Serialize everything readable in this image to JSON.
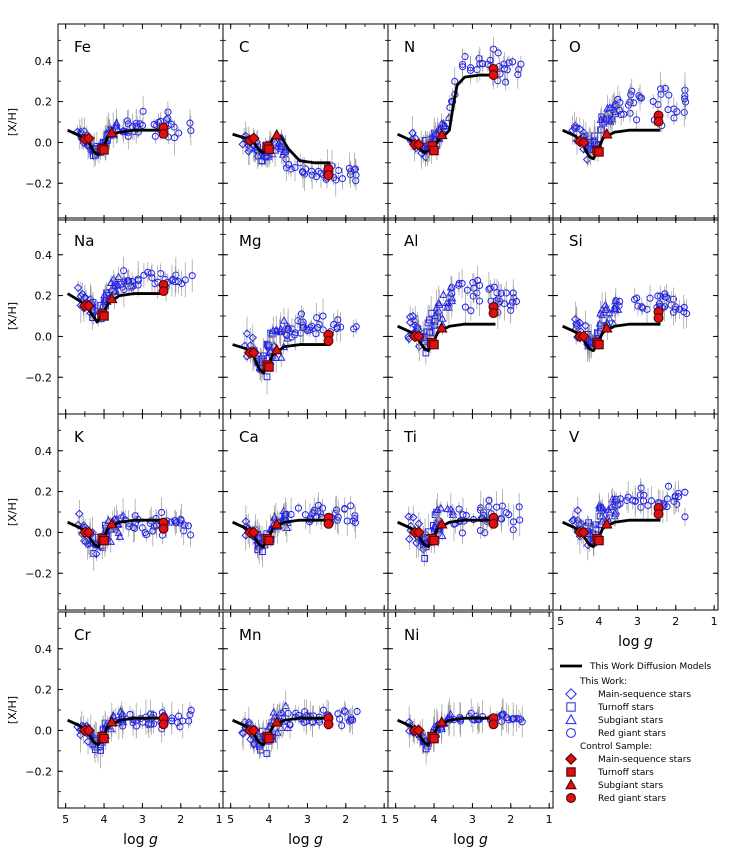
{
  "chart_data": {
    "type": "scatter",
    "title": "",
    "xlabel": "log g",
    "xlabel_main": "log ",
    "xlabel_italic": "g",
    "ylabel": "[X/H]",
    "xlim": [
      5.2,
      0.9
    ],
    "ylim": [
      -0.38,
      0.58
    ],
    "xticks": [
      5,
      4,
      3,
      2,
      1
    ],
    "yticks": [
      -0.2,
      0.0,
      0.2,
      0.4
    ],
    "ytick_labels": [
      "−0.2",
      "0.0",
      "0.2",
      "0.4"
    ],
    "panels": [
      {
        "element": "Fe",
        "model": [
          [
            4.95,
            0.06
          ],
          [
            4.6,
            0.03
          ],
          [
            4.4,
            0.0
          ],
          [
            4.25,
            -0.05
          ],
          [
            4.15,
            -0.06
          ],
          [
            4.05,
            -0.04
          ],
          [
            3.9,
            0.03
          ],
          [
            3.6,
            0.05
          ],
          [
            3.2,
            0.06
          ],
          [
            2.7,
            0.06
          ],
          [
            2.4,
            0.06
          ]
        ]
      },
      {
        "element": "C",
        "model": [
          [
            4.95,
            0.04
          ],
          [
            4.6,
            0.02
          ],
          [
            4.4,
            0.0
          ],
          [
            4.25,
            -0.04
          ],
          [
            4.15,
            -0.05
          ],
          [
            4.05,
            -0.03
          ],
          [
            3.9,
            0.02
          ],
          [
            3.7,
            0.03
          ],
          [
            3.5,
            -0.03
          ],
          [
            3.2,
            -0.09
          ],
          [
            2.8,
            -0.1
          ],
          [
            2.4,
            -0.1
          ]
        ]
      },
      {
        "element": "N",
        "model": [
          [
            4.95,
            0.04
          ],
          [
            4.6,
            0.01
          ],
          [
            4.4,
            -0.03
          ],
          [
            4.25,
            -0.05
          ],
          [
            4.15,
            -0.04
          ],
          [
            4.0,
            -0.02
          ],
          [
            3.85,
            0.02
          ],
          [
            3.7,
            0.04
          ],
          [
            3.6,
            0.06
          ],
          [
            3.5,
            0.18
          ],
          [
            3.4,
            0.28
          ],
          [
            3.2,
            0.32
          ],
          [
            2.8,
            0.33
          ],
          [
            2.4,
            0.33
          ]
        ]
      },
      {
        "element": "O",
        "model": [
          [
            4.95,
            0.06
          ],
          [
            4.6,
            0.03
          ],
          [
            4.4,
            -0.02
          ],
          [
            4.25,
            -0.07
          ],
          [
            4.15,
            -0.08
          ],
          [
            4.05,
            -0.05
          ],
          [
            3.9,
            0.02
          ],
          [
            3.6,
            0.05
          ],
          [
            3.2,
            0.06
          ],
          [
            2.7,
            0.06
          ],
          [
            2.4,
            0.06
          ]
        ]
      },
      {
        "element": "Na",
        "model": [
          [
            4.95,
            0.21
          ],
          [
            4.6,
            0.17
          ],
          [
            4.4,
            0.13
          ],
          [
            4.25,
            0.09
          ],
          [
            4.18,
            0.07
          ],
          [
            4.05,
            0.1
          ],
          [
            3.9,
            0.16
          ],
          [
            3.6,
            0.2
          ],
          [
            3.2,
            0.21
          ],
          [
            2.7,
            0.21
          ],
          [
            2.4,
            0.21
          ]
        ]
      },
      {
        "element": "Mg",
        "model": [
          [
            4.95,
            -0.04
          ],
          [
            4.6,
            -0.06
          ],
          [
            4.4,
            -0.1
          ],
          [
            4.25,
            -0.16
          ],
          [
            4.15,
            -0.18
          ],
          [
            4.05,
            -0.15
          ],
          [
            3.9,
            -0.09
          ],
          [
            3.6,
            -0.05
          ],
          [
            3.2,
            -0.04
          ],
          [
            2.7,
            -0.04
          ],
          [
            2.4,
            -0.04
          ]
        ]
      },
      {
        "element": "Al",
        "model": [
          [
            4.95,
            0.05
          ],
          [
            4.6,
            0.02
          ],
          [
            4.4,
            -0.02
          ],
          [
            4.25,
            -0.06
          ],
          [
            4.15,
            -0.07
          ],
          [
            4.05,
            -0.04
          ],
          [
            3.9,
            0.02
          ],
          [
            3.6,
            0.05
          ],
          [
            3.2,
            0.06
          ],
          [
            2.7,
            0.06
          ],
          [
            2.4,
            0.06
          ]
        ]
      },
      {
        "element": "Si",
        "model": [
          [
            4.95,
            0.05
          ],
          [
            4.6,
            0.02
          ],
          [
            4.4,
            -0.02
          ],
          [
            4.25,
            -0.06
          ],
          [
            4.15,
            -0.07
          ],
          [
            4.05,
            -0.04
          ],
          [
            3.9,
            0.02
          ],
          [
            3.6,
            0.05
          ],
          [
            3.2,
            0.06
          ],
          [
            2.7,
            0.06
          ],
          [
            2.4,
            0.06
          ]
        ]
      },
      {
        "element": "K",
        "model": [
          [
            4.95,
            0.05
          ],
          [
            4.6,
            0.02
          ],
          [
            4.4,
            -0.02
          ],
          [
            4.25,
            -0.06
          ],
          [
            4.15,
            -0.07
          ],
          [
            4.05,
            -0.04
          ],
          [
            3.9,
            0.02
          ],
          [
            3.6,
            0.05
          ],
          [
            3.2,
            0.06
          ],
          [
            2.7,
            0.06
          ],
          [
            2.4,
            0.06
          ]
        ]
      },
      {
        "element": "Ca",
        "model": [
          [
            4.95,
            0.05
          ],
          [
            4.6,
            0.02
          ],
          [
            4.4,
            -0.02
          ],
          [
            4.25,
            -0.06
          ],
          [
            4.15,
            -0.07
          ],
          [
            4.05,
            -0.04
          ],
          [
            3.9,
            0.02
          ],
          [
            3.6,
            0.05
          ],
          [
            3.2,
            0.06
          ],
          [
            2.7,
            0.06
          ],
          [
            2.4,
            0.06
          ]
        ]
      },
      {
        "element": "Ti",
        "model": [
          [
            4.95,
            0.05
          ],
          [
            4.6,
            0.02
          ],
          [
            4.4,
            -0.02
          ],
          [
            4.25,
            -0.06
          ],
          [
            4.15,
            -0.07
          ],
          [
            4.05,
            -0.04
          ],
          [
            3.9,
            0.02
          ],
          [
            3.6,
            0.05
          ],
          [
            3.2,
            0.06
          ],
          [
            2.7,
            0.06
          ],
          [
            2.4,
            0.06
          ]
        ]
      },
      {
        "element": "V",
        "model": [
          [
            4.95,
            0.05
          ],
          [
            4.6,
            0.02
          ],
          [
            4.4,
            -0.02
          ],
          [
            4.25,
            -0.06
          ],
          [
            4.15,
            -0.07
          ],
          [
            4.05,
            -0.04
          ],
          [
            3.9,
            0.02
          ],
          [
            3.6,
            0.05
          ],
          [
            3.2,
            0.06
          ],
          [
            2.7,
            0.06
          ],
          [
            2.4,
            0.06
          ]
        ]
      },
      {
        "element": "Cr",
        "model": [
          [
            4.95,
            0.05
          ],
          [
            4.6,
            0.02
          ],
          [
            4.4,
            -0.02
          ],
          [
            4.25,
            -0.06
          ],
          [
            4.15,
            -0.07
          ],
          [
            4.05,
            -0.04
          ],
          [
            3.9,
            0.02
          ],
          [
            3.6,
            0.05
          ],
          [
            3.2,
            0.06
          ],
          [
            2.7,
            0.06
          ],
          [
            2.4,
            0.06
          ]
        ]
      },
      {
        "element": "Mn",
        "model": [
          [
            4.95,
            0.05
          ],
          [
            4.6,
            0.02
          ],
          [
            4.4,
            -0.02
          ],
          [
            4.25,
            -0.06
          ],
          [
            4.15,
            -0.07
          ],
          [
            4.05,
            -0.04
          ],
          [
            3.9,
            0.02
          ],
          [
            3.6,
            0.05
          ],
          [
            3.2,
            0.06
          ],
          [
            2.7,
            0.06
          ],
          [
            2.4,
            0.06
          ]
        ]
      },
      {
        "element": "Ni",
        "model": [
          [
            4.95,
            0.05
          ],
          [
            4.6,
            0.02
          ],
          [
            4.4,
            -0.02
          ],
          [
            4.25,
            -0.06
          ],
          [
            4.15,
            -0.07
          ],
          [
            4.05,
            -0.04
          ],
          [
            3.9,
            0.02
          ],
          [
            3.6,
            0.05
          ],
          [
            3.2,
            0.06
          ],
          [
            2.7,
            0.06
          ],
          [
            2.4,
            0.06
          ]
        ]
      }
    ],
    "legend": {
      "model_label": "This Work Diffusion Models",
      "this_work_header": "This Work:",
      "this_work_entries": [
        "Main-sequence stars",
        "Turnoff stars",
        "Subgiant stars",
        "Red giant stars"
      ],
      "control_header": "Control Sample:",
      "control_entries": [
        "Main-sequence stars",
        "Turnoff stars",
        "Subgiant stars",
        "Red giant stars"
      ]
    },
    "colors": {
      "this_work": "#2222ee",
      "control_fill": "#dd1111",
      "control_edge": "#550000",
      "model": "#000000",
      "errorbar": "#999999"
    }
  }
}
